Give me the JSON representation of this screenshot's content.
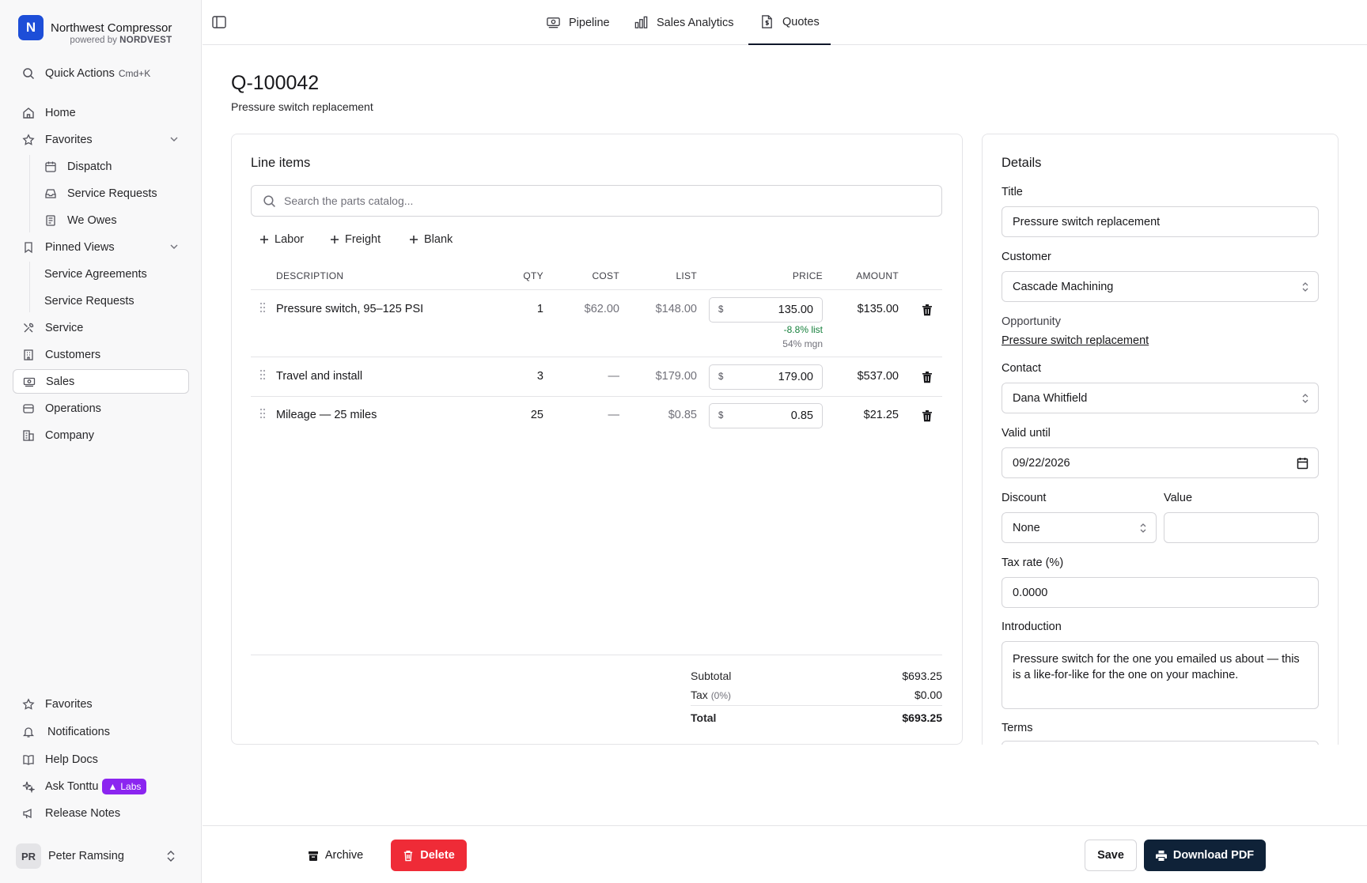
{
  "brand": {
    "logo_letter": "N",
    "name": "Northwest Compressor",
    "powered_prefix": "powered by",
    "powered_brand": "NORDVEST"
  },
  "sidebar": {
    "quick_actions": {
      "label": "Quick Actions",
      "shortcut": "Cmd+K"
    },
    "home": "Home",
    "favorites": {
      "label": "Favorites",
      "items": [
        "Dispatch",
        "Service Requests",
        "We Owes"
      ]
    },
    "pinned": {
      "label": "Pinned Views",
      "items": [
        "Service Agreements",
        "Service Requests"
      ]
    },
    "main_items": [
      "Service",
      "Customers",
      "Sales",
      "Operations",
      "Company"
    ],
    "bottom": {
      "favorites": "Favorites",
      "notifications": "Notifications",
      "help_docs": "Help Docs",
      "ask": "Ask Tonttu",
      "labs_badge": "Labs",
      "release_notes": "Release Notes"
    },
    "user": {
      "initials": "PR",
      "name": "Peter Ramsing"
    }
  },
  "tabs": [
    "Pipeline",
    "Sales Analytics",
    "Quotes"
  ],
  "quote": {
    "number": "Q-100042",
    "subtitle": "Pressure switch replacement"
  },
  "line_items": {
    "title": "Line items",
    "search_placeholder": "Search the parts catalog...",
    "add_buttons": [
      "Labor",
      "Freight",
      "Blank"
    ],
    "columns": [
      "DESCRIPTION",
      "QTY",
      "COST",
      "LIST",
      "PRICE",
      "AMOUNT"
    ],
    "rows": [
      {
        "description": "Pressure switch, 95–125 PSI",
        "qty": "1",
        "cost": "$62.00",
        "list": "$148.00",
        "currency": "$",
        "price": "135.00",
        "amount": "$135.00",
        "list_note": "-8.8% list",
        "margin_note": "54% mgn"
      },
      {
        "description": "Travel and install",
        "qty": "3",
        "cost": "—",
        "list": "$179.00",
        "currency": "$",
        "price": "179.00",
        "amount": "$537.00"
      },
      {
        "description": "Mileage — 25 miles",
        "qty": "25",
        "cost": "—",
        "list": "$0.85",
        "currency": "$",
        "price": "0.85",
        "amount": "$21.25"
      }
    ],
    "totals": {
      "subtotal_label": "Subtotal",
      "subtotal": "$693.25",
      "tax_label": "Tax",
      "tax_rate": "(0%)",
      "tax": "$0.00",
      "total_label": "Total",
      "total": "$693.25"
    }
  },
  "details": {
    "title": "Details",
    "title_label": "Title",
    "title_value": "Pressure switch replacement",
    "customer_label": "Customer",
    "customer_value": "Cascade Machining",
    "opportunity_label": "Opportunity",
    "opportunity_value": "Pressure switch replacement",
    "contact_label": "Contact",
    "contact_value": "Dana Whitfield",
    "valid_label": "Valid until",
    "valid_value": "09/22/2026",
    "discount_label": "Discount",
    "discount_value": "None",
    "value_label": "Value",
    "value_value": "",
    "tax_label": "Tax rate (%)",
    "tax_value": "0.0000",
    "intro_label": "Introduction",
    "intro_value": "Pressure switch for the one you emailed us about — this is a like-for-like for the one on your machine.",
    "terms_label": "Terms"
  },
  "footer": {
    "archive": "Archive",
    "delete": "Delete",
    "save": "Save",
    "download": "Download PDF"
  },
  "colors": {
    "accent": "#1d4ed8",
    "delete": "#ef2b37",
    "primary": "#0f2238",
    "labs": "#8b25f0",
    "positive": "#16803c"
  }
}
